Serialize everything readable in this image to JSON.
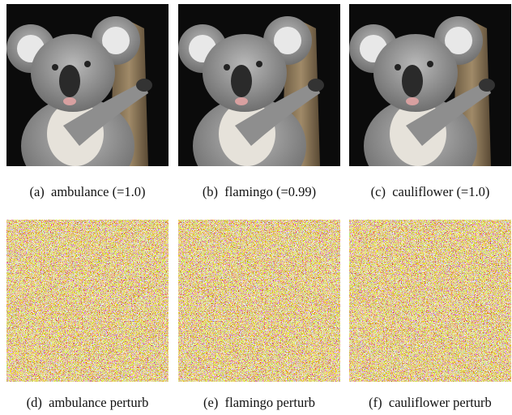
{
  "figure": {
    "panels": [
      {
        "caption": "(a)  ambulance (=1.0)"
      },
      {
        "caption": "(b)  flamingo (=0.99)"
      },
      {
        "caption": "(c)  cauliflower (=1.0)"
      },
      {
        "caption": "(d)  ambulance perturb"
      },
      {
        "caption": "(e)  flamingo perturb"
      },
      {
        "caption": "(f)  cauliflower perturb"
      }
    ]
  }
}
